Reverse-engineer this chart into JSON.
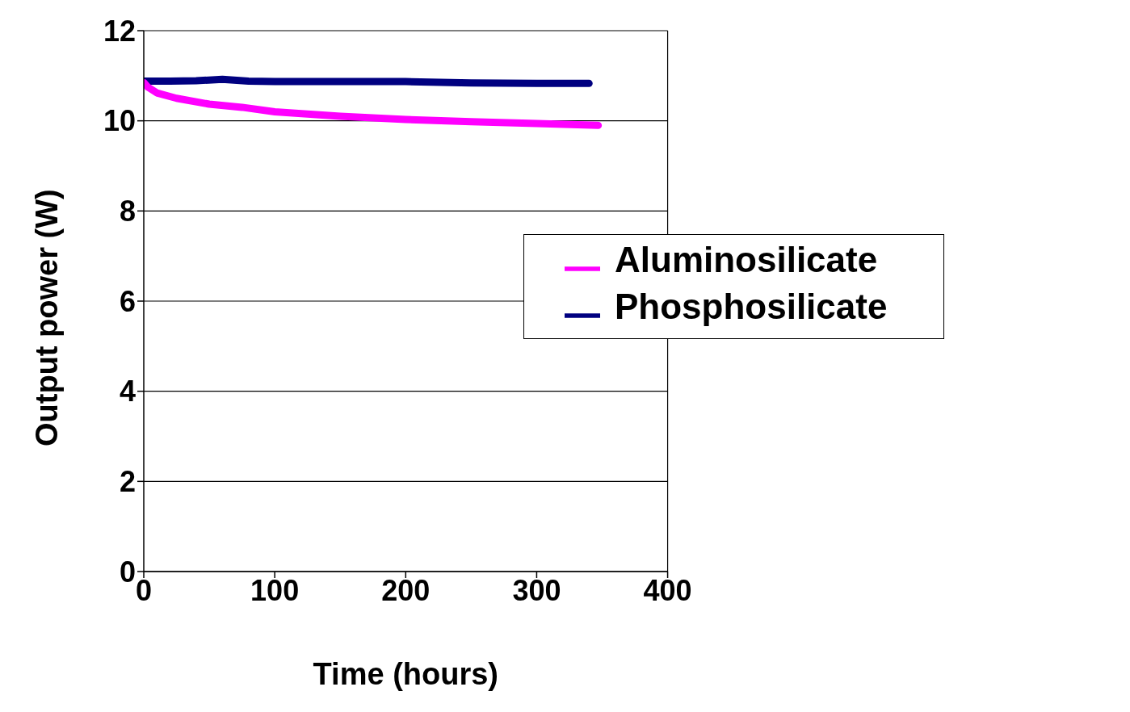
{
  "chart_data": {
    "type": "line",
    "xlabel": "Time (hours)",
    "ylabel": "Output power (W)",
    "series": [
      {
        "name": "Phosphosilicate",
        "color": "#000080",
        "x": [
          0,
          20,
          40,
          60,
          80,
          100,
          150,
          200,
          250,
          300,
          340
        ],
        "values": [
          10.88,
          10.88,
          10.89,
          10.92,
          10.88,
          10.87,
          10.87,
          10.87,
          10.84,
          10.83,
          10.83
        ]
      },
      {
        "name": "Aluminosilicate",
        "color": "#ff00ff",
        "x": [
          0,
          3,
          10,
          25,
          50,
          75,
          100,
          150,
          200,
          250,
          300,
          347
        ],
        "values": [
          10.85,
          10.75,
          10.62,
          10.5,
          10.37,
          10.3,
          10.2,
          10.1,
          10.03,
          9.98,
          9.94,
          9.9
        ]
      }
    ],
    "xlim": [
      0,
      400
    ],
    "xticks": [
      0,
      100,
      200,
      300,
      400
    ],
    "ylim": [
      0,
      12
    ],
    "yticks": [
      0,
      2,
      4,
      6,
      8,
      10,
      12
    ],
    "grid": "y",
    "legend": "right",
    "marker": "none",
    "line_style": "solid"
  }
}
